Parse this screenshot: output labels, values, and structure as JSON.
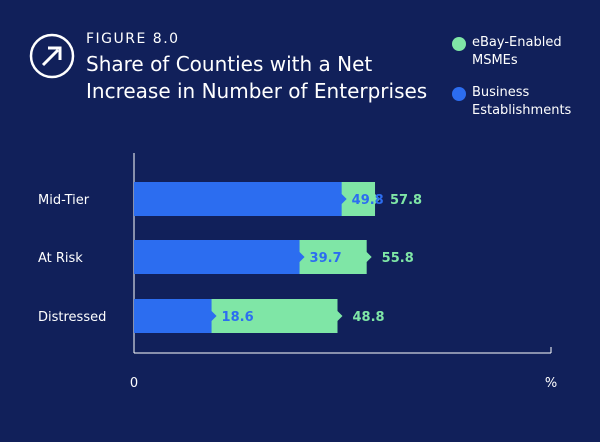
{
  "header": {
    "figure_label": "FIGURE 8.0",
    "title": "Share of Counties with a Net Increase in Number of Enterprises",
    "icon": "arrow-up-right-circle-icon"
  },
  "colors": {
    "background": "#11205a",
    "ebay": "#7fe6a6",
    "business": "#2c6df0"
  },
  "chart_data": {
    "type": "bar",
    "orientation": "horizontal",
    "title": "Share of Counties with a Net Increase in Number of Enterprises",
    "categories": [
      "Mid-Tier",
      "At Risk",
      "Distressed"
    ],
    "series": [
      {
        "name": "eBay-Enabled MSMEs",
        "values": [
          57.8,
          55.8,
          48.8
        ],
        "color": "#7fe6a6"
      },
      {
        "name": "Business Establishments",
        "values": [
          49.8,
          39.7,
          18.6
        ],
        "color": "#2c6df0"
      }
    ],
    "x_tick_labels": [
      "0",
      "%"
    ],
    "xlim": [
      0,
      100
    ],
    "grid": false,
    "legend_position": "top-right"
  }
}
